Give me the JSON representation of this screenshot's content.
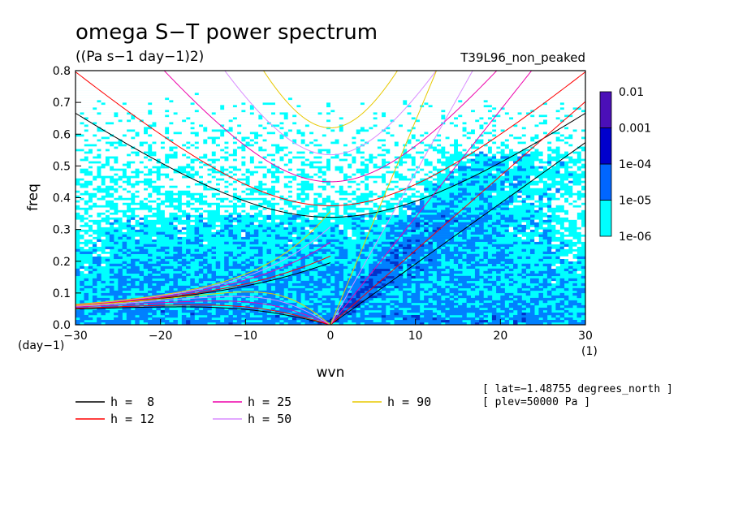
{
  "chart_data": {
    "type": "heatmap",
    "title": "omega S−T power spectrum",
    "subtitle": "((Pa s−1 day−1)2)",
    "run_label": "T39L96_non_peaked",
    "xlabel": "wvn",
    "ylabel": "freq",
    "x_unit_label": "(1)",
    "y_unit_label": "(day−1)",
    "xlim": [
      -30,
      30
    ],
    "ylim": [
      0,
      0.8
    ],
    "x_ticks": [
      -30,
      -20,
      -10,
      0,
      10,
      20,
      30
    ],
    "x_tick_labels": [
      "−30",
      "−20",
      "−10",
      "0",
      "10",
      "20",
      "30"
    ],
    "y_ticks": [
      0.0,
      0.1,
      0.2,
      0.3,
      0.4,
      0.5,
      0.6,
      0.7,
      0.8
    ],
    "y_tick_labels": [
      "0.0",
      "0.1",
      "0.2",
      "0.3",
      "0.4",
      "0.5",
      "0.6",
      "0.7",
      "0.8"
    ],
    "colorbar": {
      "levels": [
        "1e-06",
        "1e-05",
        "1e-04",
        "0.001",
        "0.01"
      ],
      "colors": [
        "#00ffff",
        "#0080ff",
        "#0033cc",
        "#0000aa",
        "#4b0fb8"
      ]
    },
    "dispersion_curves": [
      {
        "h": 8,
        "label": "h =  8",
        "color": "#000000"
      },
      {
        "h": 12,
        "label": "h = 12",
        "color": "#ff0000"
      },
      {
        "h": 25,
        "label": "h = 25",
        "color": "#ee00aa"
      },
      {
        "h": 50,
        "label": "h = 50",
        "color": "#d98cff"
      },
      {
        "h": 90,
        "label": "h = 90",
        "color": "#e8c800"
      }
    ],
    "annotations": [
      "[ lat=−1.48755 degrees_north ]",
      "[ plev=50000 Pa ]"
    ]
  }
}
